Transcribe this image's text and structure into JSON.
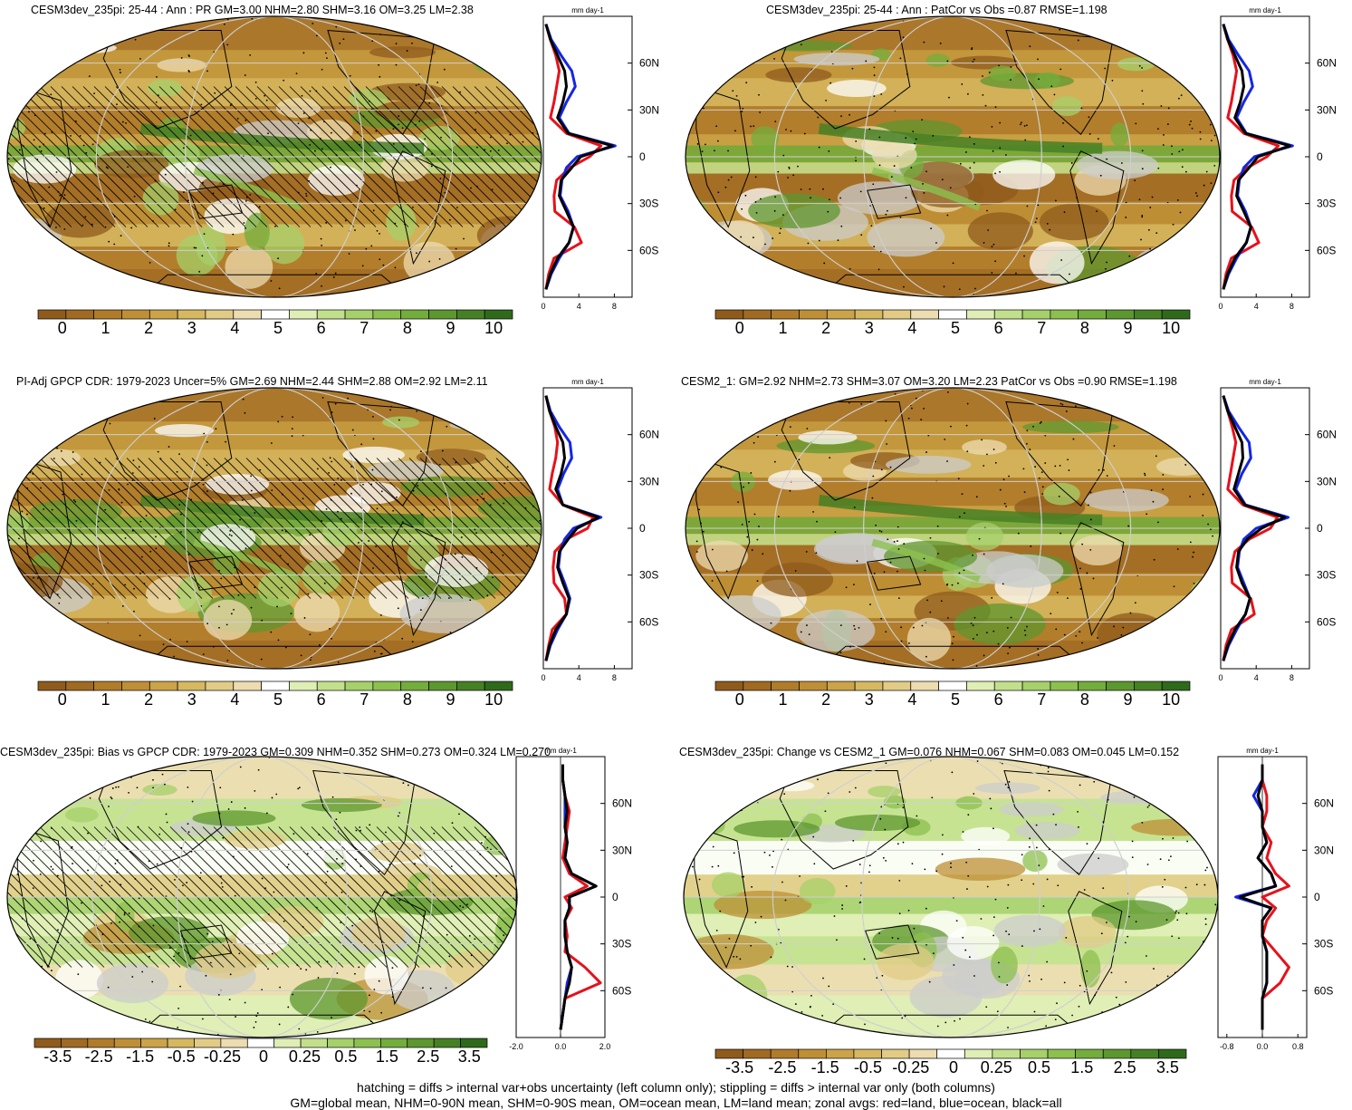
{
  "panels": [
    {
      "title": "CESM3dev_235pi: 25-44 : Ann : PR GM=3.00 NHM=2.80 SHM=3.16 OM=3.25 LM=2.38",
      "colorbar": [
        "0",
        "1",
        "2",
        "3",
        "4",
        "5",
        "6",
        "7",
        "8",
        "9",
        "10"
      ],
      "kind": "mean",
      "hatching": true,
      "zonal": {
        "units": "mm day-1",
        "xticks": [
          "0",
          "4",
          "8"
        ],
        "xlim": [
          0,
          10
        ]
      }
    },
    {
      "title": "CESM3dev_235pi: 25-44 : Ann : PatCor vs Obs =0.87 RMSE=1.198",
      "colorbar": [
        "0",
        "1",
        "2",
        "3",
        "4",
        "5",
        "6",
        "7",
        "8",
        "9",
        "10"
      ],
      "kind": "mean",
      "hatching": false,
      "zonal": {
        "units": "mm day-1",
        "xticks": [
          "0",
          "4",
          "8"
        ],
        "xlim": [
          0,
          10
        ]
      }
    },
    {
      "title": "PI-Adj GPCP CDR: 1979-2023 Uncer=5% GM=2.69 NHM=2.44 SHM=2.88 OM=2.92 LM=2.11",
      "colorbar": [
        "0",
        "1",
        "2",
        "3",
        "4",
        "5",
        "6",
        "7",
        "8",
        "9",
        "10"
      ],
      "kind": "mean",
      "hatching": true,
      "zonal": {
        "units": "mm day-1",
        "xticks": [
          "0",
          "4",
          "8"
        ],
        "xlim": [
          0,
          10
        ]
      }
    },
    {
      "title": "CESM2_1: GM=2.92 NHM=2.73 SHM=3.07 OM=3.20 LM=2.23 PatCor vs Obs =0.90 RMSE=1.198",
      "colorbar": [
        "0",
        "1",
        "2",
        "3",
        "4",
        "5",
        "6",
        "7",
        "8",
        "9",
        "10"
      ],
      "kind": "mean",
      "hatching": false,
      "zonal": {
        "units": "mm day-1",
        "xticks": [
          "0",
          "4",
          "8"
        ],
        "xlim": [
          0,
          10
        ]
      }
    },
    {
      "title": "CESM3dev_235pi: Bias vs GPCP CDR: 1979-2023 GM=0.309 NHM=0.352 SHM=0.273 OM=0.324 LM=0.270",
      "colorbar": [
        "-3.5",
        "-2.5",
        "-1.5",
        "-0.5",
        "-0.25",
        "0",
        "0.25",
        "0.5",
        "1.5",
        "2.5",
        "3.5"
      ],
      "kind": "diff",
      "hatching": true,
      "zonal": {
        "units": "mm day-1",
        "xticks": [
          "-2.0",
          "0.0",
          "2.0"
        ],
        "xlim": [
          -2,
          2
        ]
      }
    },
    {
      "title": "CESM3dev_235pi: Change vs CESM2_1 GM=0.076 NHM=0.067 SHM=0.083 OM=0.045 LM=0.152",
      "colorbar": [
        "-3.5",
        "-2.5",
        "-1.5",
        "-0.5",
        "-0.25",
        "0",
        "0.25",
        "0.5",
        "1.5",
        "2.5",
        "3.5"
      ],
      "kind": "diff",
      "hatching": false,
      "zonal": {
        "units": "mm day-1",
        "xticks": [
          "-0.8",
          "0.0",
          "0.8"
        ],
        "xlim": [
          -1,
          1
        ]
      }
    }
  ],
  "lat_ticks": [
    "60N",
    "30N",
    "0",
    "30S",
    "60S"
  ],
  "footer": {
    "line1": "hatching = diffs > internal var+obs uncertainty (left column only); stippling = diffs > internal var only (both columns)",
    "line2": "GM=global mean, NHM=0-90N mean, SHM=0-90S mean, OM=ocean mean, LM=land mean; zonal avgs: red=land, blue=ocean, black=all"
  },
  "colors": {
    "mean_scale": [
      "#8f5b1c",
      "#a06a22",
      "#b07c2a",
      "#be8f36",
      "#cba348",
      "#d6b860",
      "#e2cb85",
      "#eddcb0",
      "#ffffff",
      "#dfeeb5",
      "#c2e08c",
      "#a5d06a",
      "#8cc04f",
      "#73ad3c",
      "#5d972f",
      "#468024",
      "#2f6a1b"
    ],
    "land": "#e6111b",
    "ocean": "#1426e6",
    "all": "#000000",
    "missing": "#cccccc"
  },
  "chart_data": [
    {
      "type": "heatmap",
      "panel": 0,
      "zonal_lat": [
        85,
        75,
        65,
        55,
        45,
        35,
        25,
        15,
        7,
        0,
        -7,
        -15,
        -25,
        -35,
        -45,
        -55,
        -65,
        -75,
        -85
      ],
      "zonal_all": [
        0.3,
        0.8,
        1.6,
        2.4,
        2.6,
        2.2,
        1.6,
        2.8,
        7.8,
        4.2,
        3.2,
        2.0,
        1.8,
        2.6,
        3.4,
        2.9,
        1.6,
        0.8,
        0.3
      ],
      "zonal_land": [
        0.3,
        0.8,
        1.4,
        1.8,
        1.5,
        1.2,
        0.8,
        2.6,
        6.5,
        5.2,
        3.0,
        1.5,
        1.2,
        1.3,
        3.5,
        4.3,
        1.2,
        0.6,
        0.3
      ],
      "zonal_ocean": [
        0.3,
        0.9,
        2.0,
        3.2,
        3.6,
        2.6,
        1.8,
        2.9,
        8.1,
        3.8,
        2.6,
        2.1,
        1.9,
        2.8,
        3.4,
        2.9,
        1.8,
        0.9,
        0.3
      ]
    },
    {
      "type": "heatmap",
      "panel": 1,
      "zonal_lat": [
        85,
        75,
        65,
        55,
        45,
        35,
        25,
        15,
        7,
        0,
        -7,
        -15,
        -25,
        -35,
        -45,
        -55,
        -65,
        -75,
        -85
      ],
      "zonal_all": [
        0.3,
        0.8,
        1.6,
        2.4,
        2.6,
        2.2,
        1.6,
        2.8,
        7.8,
        4.2,
        3.2,
        2.0,
        1.8,
        2.6,
        3.4,
        2.9,
        1.6,
        0.8,
        0.3
      ],
      "zonal_land": [
        0.3,
        0.8,
        1.4,
        1.8,
        1.5,
        1.2,
        0.8,
        2.6,
        6.5,
        5.2,
        3.0,
        1.5,
        1.2,
        1.3,
        3.5,
        4.3,
        1.2,
        0.6,
        0.3
      ],
      "zonal_ocean": [
        0.3,
        0.9,
        2.0,
        3.2,
        3.6,
        2.6,
        1.8,
        2.9,
        8.1,
        3.8,
        2.6,
        2.1,
        1.9,
        2.8,
        3.4,
        2.9,
        1.8,
        0.9,
        0.3
      ]
    },
    {
      "type": "heatmap",
      "panel": 2,
      "zonal_lat": [
        85,
        75,
        65,
        55,
        45,
        35,
        25,
        15,
        7,
        0,
        -7,
        -15,
        -25,
        -35,
        -45,
        -55,
        -65,
        -75,
        -85
      ],
      "zonal_all": [
        0.3,
        0.7,
        1.4,
        2.2,
        2.4,
        2.0,
        1.4,
        2.2,
        6.2,
        3.8,
        2.8,
        1.8,
        1.6,
        2.2,
        2.9,
        2.6,
        1.4,
        0.7,
        0.3
      ],
      "zonal_land": [
        0.3,
        0.7,
        1.3,
        1.6,
        1.4,
        1.0,
        0.7,
        2.2,
        5.6,
        5.0,
        2.6,
        1.3,
        1.1,
        1.2,
        2.4,
        2.6,
        1.0,
        0.6,
        0.3
      ],
      "zonal_ocean": [
        0.3,
        0.8,
        1.8,
        3.0,
        3.2,
        2.3,
        1.6,
        2.2,
        6.5,
        3.4,
        2.4,
        1.9,
        1.7,
        2.4,
        3.0,
        2.6,
        1.6,
        0.8,
        0.3
      ]
    },
    {
      "type": "heatmap",
      "panel": 3,
      "zonal_lat": [
        85,
        75,
        65,
        55,
        45,
        35,
        25,
        15,
        7,
        0,
        -7,
        -15,
        -25,
        -35,
        -45,
        -55,
        -65,
        -75,
        -85
      ],
      "zonal_all": [
        0.3,
        0.8,
        1.6,
        2.4,
        2.5,
        2.0,
        1.5,
        2.7,
        7.2,
        4.6,
        3.0,
        2.0,
        1.8,
        2.4,
        3.3,
        2.8,
        1.6,
        0.8,
        0.3
      ],
      "zonal_land": [
        0.3,
        0.8,
        1.3,
        1.7,
        1.4,
        1.1,
        0.8,
        2.5,
        6.4,
        5.6,
        3.2,
        1.6,
        1.2,
        1.3,
        3.4,
        3.8,
        1.2,
        0.6,
        0.3
      ],
      "zonal_ocean": [
        0.3,
        0.9,
        2.0,
        3.2,
        3.4,
        2.4,
        1.7,
        2.8,
        7.6,
        4.0,
        2.6,
        2.1,
        1.9,
        2.6,
        3.3,
        2.8,
        1.8,
        0.9,
        0.3
      ]
    },
    {
      "type": "heatmap",
      "panel": 4,
      "zonal_lat": [
        85,
        75,
        65,
        55,
        45,
        35,
        25,
        15,
        7,
        0,
        -7,
        -15,
        -25,
        -35,
        -45,
        -55,
        -65,
        -75,
        -85
      ],
      "zonal_all": [
        0.1,
        0.1,
        0.2,
        0.3,
        0.2,
        0.3,
        0.2,
        0.5,
        1.6,
        0.4,
        0.4,
        0.2,
        0.2,
        0.3,
        0.5,
        0.4,
        0.2,
        0.1,
        0.0
      ],
      "zonal_land": [
        0.1,
        0.1,
        0.2,
        0.4,
        0.3,
        0.2,
        0.1,
        0.4,
        1.2,
        0.2,
        0.5,
        0.2,
        0.3,
        0.2,
        1.1,
        1.8,
        0.2,
        0.1,
        0.0
      ],
      "zonal_ocean": [
        0.1,
        0.1,
        0.2,
        0.2,
        0.2,
        0.3,
        0.2,
        0.5,
        1.6,
        0.4,
        0.4,
        0.2,
        0.2,
        0.3,
        0.5,
        0.3,
        0.2,
        0.1,
        0.0
      ]
    },
    {
      "type": "heatmap",
      "panel": 5,
      "zonal_lat": [
        85,
        75,
        65,
        55,
        45,
        35,
        25,
        15,
        7,
        0,
        -7,
        -15,
        -25,
        -35,
        -45,
        -55,
        -65,
        -75,
        -85
      ],
      "zonal_all": [
        0.0,
        0.0,
        -0.1,
        0.0,
        0.0,
        0.1,
        -0.1,
        0.2,
        0.3,
        -0.5,
        0.2,
        0.0,
        0.0,
        0.1,
        0.1,
        0.1,
        0.0,
        0.0,
        0.0
      ],
      "zonal_land": [
        0.0,
        0.0,
        0.1,
        0.1,
        0.0,
        0.2,
        0.1,
        0.3,
        0.6,
        0.0,
        0.3,
        0.1,
        0.0,
        0.3,
        0.6,
        0.4,
        0.0,
        0.0,
        0.0
      ],
      "zonal_ocean": [
        0.0,
        0.0,
        -0.2,
        0.0,
        0.0,
        0.1,
        -0.1,
        0.2,
        0.3,
        -0.6,
        0.2,
        0.0,
        0.0,
        0.1,
        0.1,
        0.1,
        0.0,
        0.0,
        0.0
      ]
    }
  ]
}
